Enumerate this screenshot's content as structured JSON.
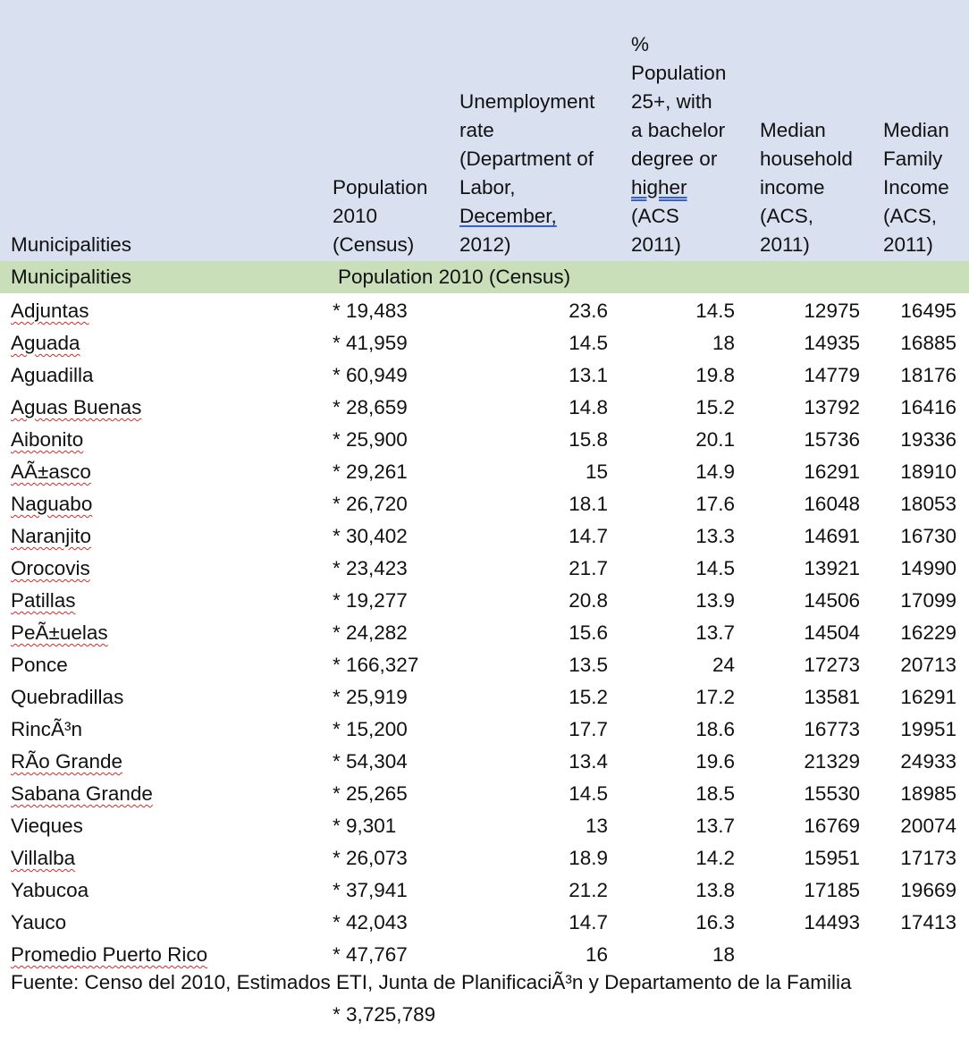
{
  "header": {
    "municipalities": "Municipalities",
    "population": [
      "Population",
      "2010",
      "(Census)"
    ],
    "unemployment": [
      "Unemployment",
      "rate",
      "(Department of",
      "Labor,",
      "December,",
      "2012)"
    ],
    "bachelor": [
      "%",
      "Population",
      "25+, with",
      "a bachelor",
      "degree or",
      "higher",
      "(ACS",
      "2011)"
    ],
    "household": [
      "Median",
      "household",
      "income",
      "(ACS,",
      "2011)"
    ],
    "family": [
      "Median",
      "Family",
      "Income",
      "(ACS,",
      "2011)"
    ]
  },
  "band": {
    "municipalities": "Municipalities",
    "population": "Population 2010 (Census)"
  },
  "rows": [
    {
      "muni": "Adjuntas",
      "pop": "* 19,483",
      "unemp": "23.6",
      "bach": "14.5",
      "hh": "12975",
      "fam": "16495"
    },
    {
      "muni": "Aguada",
      "pop": "* 41,959",
      "unemp": "14.5",
      "bach": "18",
      "hh": "14935",
      "fam": "16885"
    },
    {
      "muni": "Aguadilla",
      "pop": "* 60,949",
      "unemp": "13.1",
      "bach": "19.8",
      "hh": "14779",
      "fam": "18176"
    },
    {
      "muni": "Aguas Buenas",
      "pop": "* 28,659",
      "unemp": "14.8",
      "bach": "15.2",
      "hh": "13792",
      "fam": "16416"
    },
    {
      "muni": "Aibonito",
      "pop": "* 25,900",
      "unemp": "15.8",
      "bach": "20.1",
      "hh": "15736",
      "fam": "19336"
    },
    {
      "muni": "AÃ±asco",
      "pop": "* 29,261",
      "unemp": "15",
      "bach": "14.9",
      "hh": "16291",
      "fam": "18910"
    },
    {
      "muni": "Naguabo",
      "pop": "* 26,720",
      "unemp": "18.1",
      "bach": "17.6",
      "hh": "16048",
      "fam": "18053"
    },
    {
      "muni": "Naranjito",
      "pop": "* 30,402",
      "unemp": "14.7",
      "bach": "13.3",
      "hh": "14691",
      "fam": "16730"
    },
    {
      "muni": "Orocovis",
      "pop": "* 23,423",
      "unemp": "21.7",
      "bach": "14.5",
      "hh": "13921",
      "fam": "14990"
    },
    {
      "muni": "Patillas",
      "pop": "* 19,277",
      "unemp": "20.8",
      "bach": "13.9",
      "hh": "14506",
      "fam": "17099"
    },
    {
      "muni": "PeÃ±uelas",
      "pop": "* 24,282",
      "unemp": "15.6",
      "bach": "13.7",
      "hh": "14504",
      "fam": "16229"
    },
    {
      "muni": "Ponce",
      "pop": "* 166,327",
      "unemp": "13.5",
      "bach": "24",
      "hh": "17273",
      "fam": "20713"
    },
    {
      "muni": "Quebradillas",
      "pop": "* 25,919",
      "unemp": "15.2",
      "bach": "17.2",
      "hh": "13581",
      "fam": "16291"
    },
    {
      "muni": "RincÃ³n",
      "pop": "* 15,200",
      "unemp": "17.7",
      "bach": "18.6",
      "hh": "16773",
      "fam": "19951"
    },
    {
      "muni": "RÃo Grande",
      "pop": "* 54,304",
      "unemp": "13.4",
      "bach": "19.6",
      "hh": "21329",
      "fam": "24933"
    },
    {
      "muni": "Sabana Grande",
      "pop": "* 25,265",
      "unemp": "14.5",
      "bach": "18.5",
      "hh": "15530",
      "fam": "18985"
    },
    {
      "muni": "Vieques",
      "pop": "* 9,301",
      "unemp": "13",
      "bach": "13.7",
      "hh": "16769",
      "fam": "20074"
    },
    {
      "muni": "Villalba",
      "pop": "* 26,073",
      "unemp": "18.9",
      "bach": "14.2",
      "hh": "15951",
      "fam": "17173"
    },
    {
      "muni": "Yabucoa",
      "pop": "* 37,941",
      "unemp": "21.2",
      "bach": "13.8",
      "hh": "17185",
      "fam": "19669"
    },
    {
      "muni": "Yauco",
      "pop": "* 42,043",
      "unemp": "14.7",
      "bach": "16.3",
      "hh": "14493",
      "fam": "17413"
    },
    {
      "muni": "Promedio Puerto Rico",
      "pop": "* 47,767",
      "unemp": "16",
      "bach": "18",
      "hh": "",
      "fam": ""
    }
  ],
  "squiggle_rows": [
    0,
    1,
    3,
    4,
    5,
    6,
    7,
    8,
    9,
    10,
    14,
    15,
    17,
    20
  ],
  "footer": {
    "source": "Fuente: Censo del 2010, Estimados ETI, Junta de PlanificaciÃ³n y Departamento de la Familia",
    "total": "* 3,725,789"
  }
}
